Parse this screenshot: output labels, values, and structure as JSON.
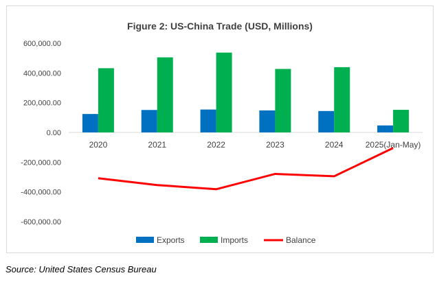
{
  "source": "Source: United States Census Bureau",
  "chart_data": {
    "type": "bar",
    "title": "Figure 2: US-China Trade (USD, Millions)",
    "xlabel": "",
    "ylabel": "",
    "categories": [
      "2020",
      "2021",
      "2022",
      "2023",
      "2024",
      "2025(Jan-May)"
    ],
    "y_ticks": [
      "600,000.00",
      "400,000.00",
      "200,000.00",
      "0.00",
      "-200,000.00",
      "-400,000.00",
      "-600,000.00"
    ],
    "ylim": [
      -600000,
      600000
    ],
    "grid": false,
    "legend_position": "bottom",
    "series": [
      {
        "name": "Exports",
        "type": "bar",
        "color": "#0070c0",
        "values": [
          124000,
          151000,
          154000,
          148000,
          144000,
          47000
        ]
      },
      {
        "name": "Imports",
        "type": "bar",
        "color": "#00b050",
        "values": [
          432000,
          505000,
          537000,
          427000,
          439000,
          152000
        ]
      },
      {
        "name": "Balance",
        "type": "line",
        "color": "#ff0000",
        "values": [
          -308000,
          -354000,
          -382000,
          -279000,
          -295000,
          -105000
        ]
      }
    ]
  }
}
